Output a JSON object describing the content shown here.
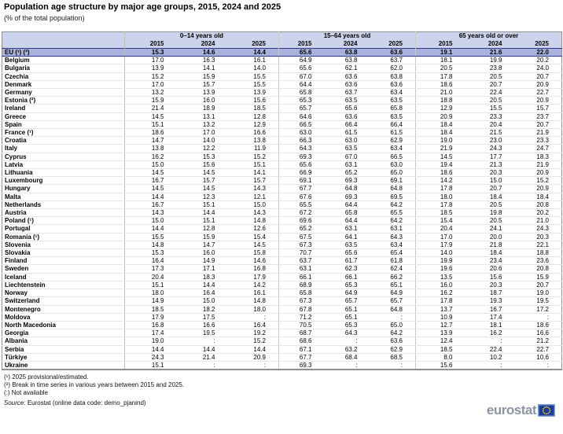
{
  "title": "Population age structure by major age groups, 2015, 2024 and 2025",
  "subtitle": "(% of the total population)",
  "table": {
    "col_groups": [
      "0–14 years old",
      "15–64 years old",
      "65 years old or over"
    ],
    "years": [
      "2015",
      "2024",
      "2025"
    ],
    "rows": [
      {
        "name": "EU (¹) (²)",
        "eu": true,
        "values": [
          "15.3",
          "14.6",
          "14.4",
          "65.6",
          "63.8",
          "63.6",
          "19.1",
          "21.6",
          "22.0"
        ]
      },
      {
        "name": "Belgium",
        "values": [
          "17.0",
          "16.3",
          "16.1",
          "64.9",
          "63.8",
          "63.7",
          "18.1",
          "19.9",
          "20.2"
        ]
      },
      {
        "name": "Bulgaria",
        "values": [
          "13.9",
          "14.1",
          "14.0",
          "65.6",
          "62.1",
          "62.0",
          "20.5",
          "23.8",
          "24.0"
        ]
      },
      {
        "name": "Czechia",
        "values": [
          "15.2",
          "15.9",
          "15.5",
          "67.0",
          "63.6",
          "63.8",
          "17.8",
          "20.5",
          "20.7"
        ]
      },
      {
        "name": "Denmark",
        "values": [
          "17.0",
          "15.7",
          "15.5",
          "64.4",
          "63.6",
          "63.6",
          "18.6",
          "20.7",
          "20.9"
        ]
      },
      {
        "name": "Germany",
        "values": [
          "13.2",
          "13.9",
          "13.9",
          "65.8",
          "63.7",
          "63.4",
          "21.0",
          "22.4",
          "22.7"
        ]
      },
      {
        "name": "Estonia (²)",
        "values": [
          "15.9",
          "16.0",
          "15.6",
          "65.3",
          "63.5",
          "63.5",
          "18.8",
          "20.5",
          "20.9"
        ]
      },
      {
        "name": "Ireland",
        "values": [
          "21.4",
          "18.9",
          "18.5",
          "65.7",
          "65.6",
          "65.8",
          "12.9",
          "15.5",
          "15.7"
        ]
      },
      {
        "name": "Greece",
        "values": [
          "14.5",
          "13.1",
          "12.8",
          "64.6",
          "63.6",
          "63.5",
          "20.9",
          "23.3",
          "23.7"
        ]
      },
      {
        "name": "Spain",
        "values": [
          "15.1",
          "13.2",
          "12.9",
          "66.5",
          "66.4",
          "66.4",
          "18.4",
          "20.4",
          "20.7"
        ]
      },
      {
        "name": "France (¹)",
        "values": [
          "18.6",
          "17.0",
          "16.6",
          "63.0",
          "61.5",
          "61.5",
          "18.4",
          "21.5",
          "21.9"
        ]
      },
      {
        "name": "Croatia",
        "values": [
          "14.7",
          "14.0",
          "13.8",
          "66.3",
          "63.0",
          "62.9",
          "19.0",
          "23.0",
          "23.3"
        ]
      },
      {
        "name": "Italy",
        "values": [
          "13.8",
          "12.2",
          "11.9",
          "64.3",
          "63.5",
          "63.4",
          "21.9",
          "24.3",
          "24.7"
        ]
      },
      {
        "name": "Cyprus",
        "values": [
          "16.2",
          "15.3",
          "15.2",
          "69.3",
          "67.0",
          "66.5",
          "14.5",
          "17.7",
          "18.3"
        ]
      },
      {
        "name": "Latvia",
        "values": [
          "15.0",
          "15.6",
          "15.1",
          "65.6",
          "63.1",
          "63.0",
          "19.4",
          "21.3",
          "21.9"
        ]
      },
      {
        "name": "Lithuania",
        "values": [
          "14.5",
          "14.5",
          "14.1",
          "66.9",
          "65.2",
          "65.0",
          "18.6",
          "20.3",
          "20.9"
        ]
      },
      {
        "name": "Luxembourg",
        "values": [
          "16.7",
          "15.7",
          "15.7",
          "69.1",
          "69.3",
          "69.1",
          "14.2",
          "15.0",
          "15.2"
        ]
      },
      {
        "name": "Hungary",
        "values": [
          "14.5",
          "14.5",
          "14.3",
          "67.7",
          "64.8",
          "64.8",
          "17.8",
          "20.7",
          "20.9"
        ]
      },
      {
        "name": "Malta",
        "values": [
          "14.4",
          "12.3",
          "12.1",
          "67.6",
          "69.3",
          "69.5",
          "18.0",
          "18.4",
          "18.4"
        ]
      },
      {
        "name": "Netherlands",
        "values": [
          "16.7",
          "15.1",
          "15.0",
          "65.5",
          "64.4",
          "64.2",
          "17.8",
          "20.5",
          "20.8"
        ]
      },
      {
        "name": "Austria",
        "values": [
          "14.3",
          "14.4",
          "14.3",
          "67.2",
          "65.8",
          "65.5",
          "18.5",
          "19.8",
          "20.2"
        ]
      },
      {
        "name": "Poland (¹)",
        "values": [
          "15.0",
          "15.1",
          "14.8",
          "69.6",
          "64.4",
          "64.2",
          "15.4",
          "20.5",
          "21.0"
        ]
      },
      {
        "name": "Portugal",
        "values": [
          "14.4",
          "12.8",
          "12.6",
          "65.2",
          "63.1",
          "63.1",
          "20.4",
          "24.1",
          "24.3"
        ]
      },
      {
        "name": "Romania (¹)",
        "values": [
          "15.5",
          "15.9",
          "15.4",
          "67.5",
          "64.1",
          "64.3",
          "17.0",
          "20.0",
          "20.3"
        ]
      },
      {
        "name": "Slovenia",
        "values": [
          "14.8",
          "14.7",
          "14.5",
          "67.3",
          "63.5",
          "63.4",
          "17.9",
          "21.8",
          "22.1"
        ]
      },
      {
        "name": "Slovakia",
        "values": [
          "15.3",
          "16.0",
          "15.8",
          "70.7",
          "65.6",
          "65.4",
          "14.0",
          "18.4",
          "18.8"
        ]
      },
      {
        "name": "Finland",
        "values": [
          "16.4",
          "14.9",
          "14.6",
          "63.7",
          "61.7",
          "61.8",
          "19.9",
          "23.4",
          "23.6"
        ]
      },
      {
        "name": "Sweden",
        "values": [
          "17.3",
          "17.1",
          "16.8",
          "63.1",
          "62.3",
          "62.4",
          "19.6",
          "20.6",
          "20.8"
        ]
      },
      {
        "name": "Iceland",
        "section_start": true,
        "values": [
          "20.4",
          "18.3",
          "17.9",
          "66.1",
          "66.1",
          "66.2",
          "13.5",
          "15.6",
          "15.9"
        ]
      },
      {
        "name": "Liechtenstein",
        "values": [
          "15.1",
          "14.4",
          "14.2",
          "68.9",
          "65.3",
          "65.1",
          "16.0",
          "20.3",
          "20.7"
        ]
      },
      {
        "name": "Norway",
        "values": [
          "18.0",
          "16.4",
          "16.1",
          "65.8",
          "64.9",
          "64.9",
          "16.2",
          "18.7",
          "19.0"
        ]
      },
      {
        "name": "Switzerland",
        "values": [
          "14.9",
          "15.0",
          "14.8",
          "67.3",
          "65.7",
          "65.7",
          "17.8",
          "19.3",
          "19.5"
        ]
      },
      {
        "name": "Montenegro",
        "section_start": true,
        "values": [
          "18.5",
          "18.2",
          "18.0",
          "67.8",
          "65.1",
          "64.8",
          "13.7",
          "16.7",
          "17.2"
        ]
      },
      {
        "name": "Moldova",
        "values": [
          "17.9",
          "17.5",
          ":",
          "71.2",
          "65.1",
          ":",
          "10.9",
          "17.4",
          ":"
        ]
      },
      {
        "name": "North Macedonia",
        "values": [
          "16.8",
          "16.6",
          "16.4",
          "70.5",
          "65.3",
          "65.0",
          "12.7",
          "18.1",
          "18.6"
        ]
      },
      {
        "name": "Georgia",
        "values": [
          "17.4",
          "19.5",
          "19.2",
          "68.7",
          "64.3",
          "64.2",
          "13.9",
          "16.2",
          "16.6"
        ]
      },
      {
        "name": "Albania",
        "values": [
          "19.0",
          ":",
          "15.2",
          "68.6",
          ":",
          "63.6",
          "12.4",
          ":",
          "21.2"
        ]
      },
      {
        "name": "Serbia",
        "values": [
          "14.4",
          "14.4",
          "14.4",
          "67.1",
          "63.2",
          "62.9",
          "18.5",
          "22.4",
          "22.7"
        ]
      },
      {
        "name": "Türkiye",
        "values": [
          "24.3",
          "21.4",
          "20.9",
          "67.7",
          "68.4",
          "68.5",
          "8.0",
          "10.2",
          "10.6"
        ]
      },
      {
        "name": "Ukraine",
        "values": [
          "15.1",
          ":",
          ":",
          "69.3",
          ":",
          ":",
          "15.6",
          ":",
          ":"
        ]
      }
    ]
  },
  "footnotes": [
    "(¹) 2025 provisional/estimated.",
    "(²) Break in time series in various years between 2015 and 2025.",
    "(:) Not available"
  ],
  "source_label": "Source:",
  "source_text": "Eurostat (online data code: demo_pjanind)",
  "logo_text": "eurostat",
  "colors": {
    "header_bg": "#ccd3ec",
    "eu_row_bg": "#a9b1dd",
    "flag_blue": "#1e3c96",
    "flag_frame": "#7f9fd0",
    "star_yellow": "#ffd617",
    "logo_text": "#8d94a2"
  }
}
